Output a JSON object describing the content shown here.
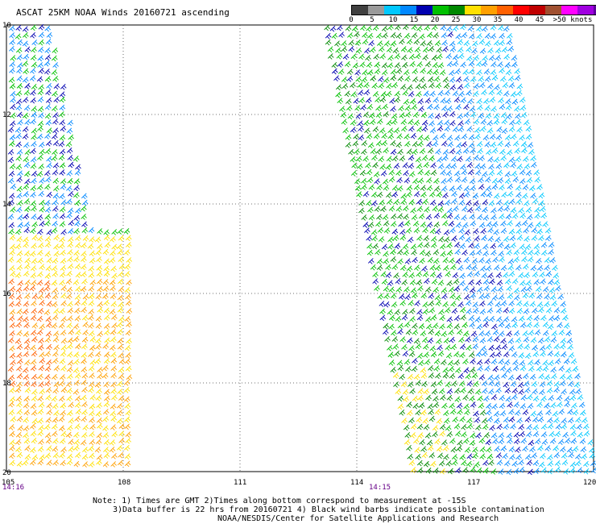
{
  "title": "ASCAT 25KM NOAA Winds 20160721 ascending",
  "legend": {
    "labels": [
      "0",
      "5",
      "10",
      "15",
      "20",
      "25",
      "30",
      "35",
      "40",
      "45",
      ">50 knots"
    ],
    "colors": [
      "#404040",
      "#9a9a9a",
      "#00c8ff",
      "#0088ff",
      "#0000b0",
      "#00c000",
      "#008800",
      "#ffe000",
      "#ffa000",
      "#ff6000",
      "#ff0000",
      "#c00000",
      "#a05030",
      "#ff00ff",
      "#a000e0",
      "#6000a0"
    ]
  },
  "axes": {
    "lat_labels": [
      "10",
      "12",
      "14",
      "16",
      "18",
      "20"
    ],
    "lon_labels": [
      "105",
      "108",
      "111",
      "114",
      "117",
      "120"
    ]
  },
  "swath_times": [
    "14:16",
    "14:15"
  ],
  "notes": {
    "line1": "Note: 1) Times are GMT 2)Times along bottom correspond to measurement at -15S",
    "line2": "3)Data buffer is 22 hrs from 20160721 4) Black wind barbs indicate possible contamination",
    "line3": "NOAA/NESDIS/Center for Satellite Applications and Research"
  }
}
